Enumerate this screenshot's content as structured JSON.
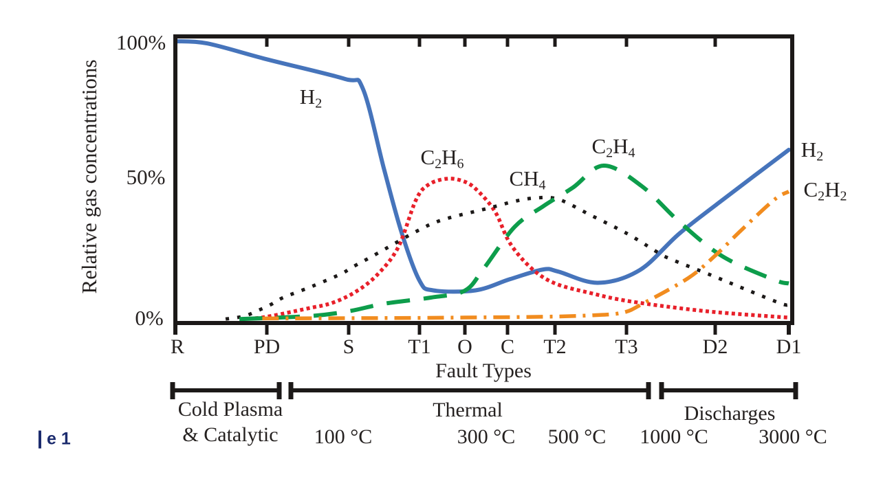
{
  "figure": {
    "caption_fragment": "e 1"
  },
  "chart_data": {
    "type": "line",
    "title": "",
    "ylabel": "Relative gas concentrations",
    "xlabel": "Fault Types",
    "ylim": [
      0,
      100
    ],
    "grid": false,
    "legend": "inline-annotations",
    "y_ticks": [
      {
        "label": "100%",
        "value": 100
      },
      {
        "label": "50%",
        "value": 50
      },
      {
        "label": "0%",
        "value": 0
      }
    ],
    "categories": [
      "R",
      "PD",
      "S",
      "T1",
      "O",
      "C",
      "T2",
      "T3",
      "D2",
      "D1"
    ],
    "series": [
      {
        "name": "H2",
        "color": "#4674bb",
        "line_style": "solid",
        "points": [
          [
            0,
            100
          ],
          [
            0.35,
            99.2
          ],
          [
            1,
            93.5
          ],
          [
            1.95,
            86.5
          ],
          [
            2.2,
            83
          ],
          [
            2.5,
            54
          ],
          [
            2.75,
            31
          ],
          [
            3,
            14
          ],
          [
            3.3,
            10.5
          ],
          [
            4.25,
            10.5
          ],
          [
            5.05,
            14.5
          ],
          [
            5.75,
            18
          ],
          [
            6.05,
            17.2
          ],
          [
            6.6,
            13.2
          ],
          [
            7.15,
            17.8
          ],
          [
            7.6,
            31
          ],
          [
            8.2,
            45
          ],
          [
            9,
            61
          ]
        ]
      },
      {
        "name": "C2H6",
        "color": "#e8202a",
        "line_style": "dotted-fine",
        "points": [
          [
            0.8,
            0.3
          ],
          [
            1,
            1
          ],
          [
            1.5,
            4
          ],
          [
            1.8,
            6
          ],
          [
            2.1,
            10
          ],
          [
            2.4,
            16
          ],
          [
            2.7,
            26
          ],
          [
            2.95,
            43
          ],
          [
            3.2,
            48.5
          ],
          [
            3.6,
            50.6
          ],
          [
            3.95,
            49.8
          ],
          [
            4.25,
            47
          ],
          [
            4.7,
            39
          ],
          [
            5.05,
            27.5
          ],
          [
            5.5,
            18.5
          ],
          [
            6,
            13
          ],
          [
            6.5,
            9.5
          ],
          [
            7.05,
            6.5
          ],
          [
            7.9,
            3
          ],
          [
            9,
            0.7
          ]
        ]
      },
      {
        "name": "CH4",
        "color": "#1c1918",
        "line_style": "dotted-sparse",
        "points": [
          [
            0.55,
            0.2
          ],
          [
            0.75,
            1.2
          ],
          [
            0.9,
            3.2
          ],
          [
            1.05,
            5.4
          ],
          [
            1.2,
            7.9
          ],
          [
            1.55,
            11.9
          ],
          [
            1.9,
            16.3
          ],
          [
            2.05,
            18.8
          ],
          [
            2.4,
            23.7
          ],
          [
            2.95,
            31.6
          ],
          [
            3.5,
            35.8
          ],
          [
            4.55,
            40
          ],
          [
            5.15,
            42.5
          ],
          [
            5.6,
            43.7
          ],
          [
            6.05,
            43.2
          ],
          [
            6.5,
            37.5
          ],
          [
            7,
            31
          ],
          [
            7.35,
            24.2
          ],
          [
            7.5,
            21.7
          ],
          [
            7.95,
            16
          ],
          [
            8.4,
            11
          ],
          [
            8.9,
            5.7
          ],
          [
            9,
            5.4
          ]
        ]
      },
      {
        "name": "C2H4",
        "color": "#0d9d4b",
        "line_style": "dashed",
        "points": [
          [
            0.7,
            0.2
          ],
          [
            1.5,
            1.2
          ],
          [
            2,
            3
          ],
          [
            2.5,
            5.7
          ],
          [
            3.25,
            7.9
          ],
          [
            4,
            10.4
          ],
          [
            4.45,
            18.5
          ],
          [
            5.15,
            33.3
          ],
          [
            5.75,
            40.7
          ],
          [
            6.25,
            47.4
          ],
          [
            6.68,
            55.3
          ],
          [
            7.17,
            48
          ],
          [
            7.6,
            35
          ],
          [
            8.1,
            22.7
          ],
          [
            8.8,
            14.3
          ],
          [
            9,
            13
          ]
        ]
      },
      {
        "name": "C2H2",
        "color": "#f18c1f",
        "line_style": "dashdot",
        "points": [
          [
            0.95,
            0.4
          ],
          [
            2,
            0.5
          ],
          [
            3,
            0.6
          ],
          [
            4.4,
            0.8
          ],
          [
            5.75,
            1
          ],
          [
            6.5,
            1.5
          ],
          [
            6.95,
            2.5
          ],
          [
            7.2,
            6
          ],
          [
            7.7,
            15
          ],
          [
            8,
            23
          ],
          [
            8.35,
            32
          ],
          [
            8.8,
            43
          ],
          [
            9,
            46
          ]
        ]
      }
    ],
    "annotations": [
      {
        "id": "h2-left",
        "series": "H2",
        "parts": {
          "b1": "H",
          "s1": "2",
          "b2": "",
          "s2": ""
        }
      },
      {
        "id": "c2h6",
        "series": "C2H6",
        "parts": {
          "b1": "C",
          "s1": "2",
          "b2": "H",
          "s2": "6"
        }
      },
      {
        "id": "ch4",
        "series": "CH4",
        "parts": {
          "b1": "CH",
          "s1": "4",
          "b2": "",
          "s2": ""
        }
      },
      {
        "id": "c2h4",
        "series": "C2H4",
        "parts": {
          "b1": "C",
          "s1": "2",
          "b2": "H",
          "s2": "4"
        }
      },
      {
        "id": "h2-right",
        "series": "H2",
        "parts": {
          "b1": "H",
          "s1": "2",
          "b2": "",
          "s2": ""
        }
      },
      {
        "id": "c2h2",
        "series": "C2H2",
        "parts": {
          "b1": "C",
          "s1": "2",
          "b2": "H",
          "s2": "2"
        }
      }
    ],
    "fault_class_groups": [
      {
        "label": "Cold Plasma & Catalytic",
        "label_line1": "Cold Plasma",
        "label_line2": "& Catalytic"
      },
      {
        "label": "Thermal",
        "label_line1": "Thermal"
      },
      {
        "label": "Discharges",
        "label_line1": "Discharges"
      }
    ],
    "temperature_labels": [
      "100 °C",
      "300 °C",
      "500 °C",
      "1000 °C",
      "3000 °C"
    ]
  }
}
